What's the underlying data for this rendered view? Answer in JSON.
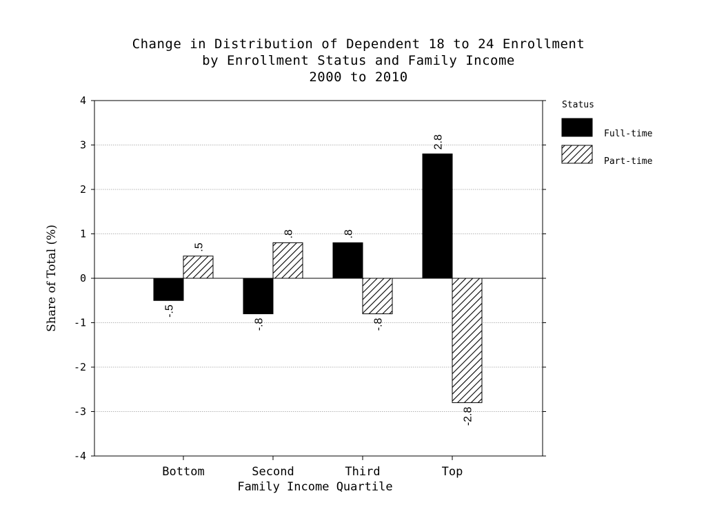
{
  "chart_data": {
    "type": "bar",
    "title": [
      "Change in Distribution of Dependent 18 to 24 Enrollment",
      "by Enrollment Status and Family Income",
      "2000 to 2010"
    ],
    "xlabel": "Family Income Quartile",
    "ylabel": "Share of Total (%)",
    "categories": [
      "Bottom",
      "Second",
      "Third",
      "Top"
    ],
    "series": [
      {
        "name": "Full-time",
        "values": [
          -0.5,
          -0.8,
          0.8,
          2.8
        ],
        "labels": [
          "-.5",
          "-.8",
          ".8",
          "2.8"
        ],
        "fill": "solid"
      },
      {
        "name": "Part-time",
        "values": [
          0.5,
          0.8,
          -0.8,
          -2.8
        ],
        "labels": [
          ".5",
          ".8",
          "-.8",
          "-2.8"
        ],
        "fill": "hatched"
      }
    ],
    "ylim": [
      -4,
      4
    ],
    "yticks": [
      4,
      3,
      2,
      1,
      0,
      -1,
      -2,
      -3,
      -4
    ],
    "ytick_labels": [
      "4",
      "3",
      "2",
      "1",
      "0",
      "-1",
      "-2",
      "-3",
      "-4"
    ],
    "grid": true,
    "legend": {
      "title": "Status",
      "position": "right"
    },
    "colors": {
      "full_time": "#000000",
      "part_time_hatch": "#000000",
      "background": "#ffffff"
    }
  }
}
